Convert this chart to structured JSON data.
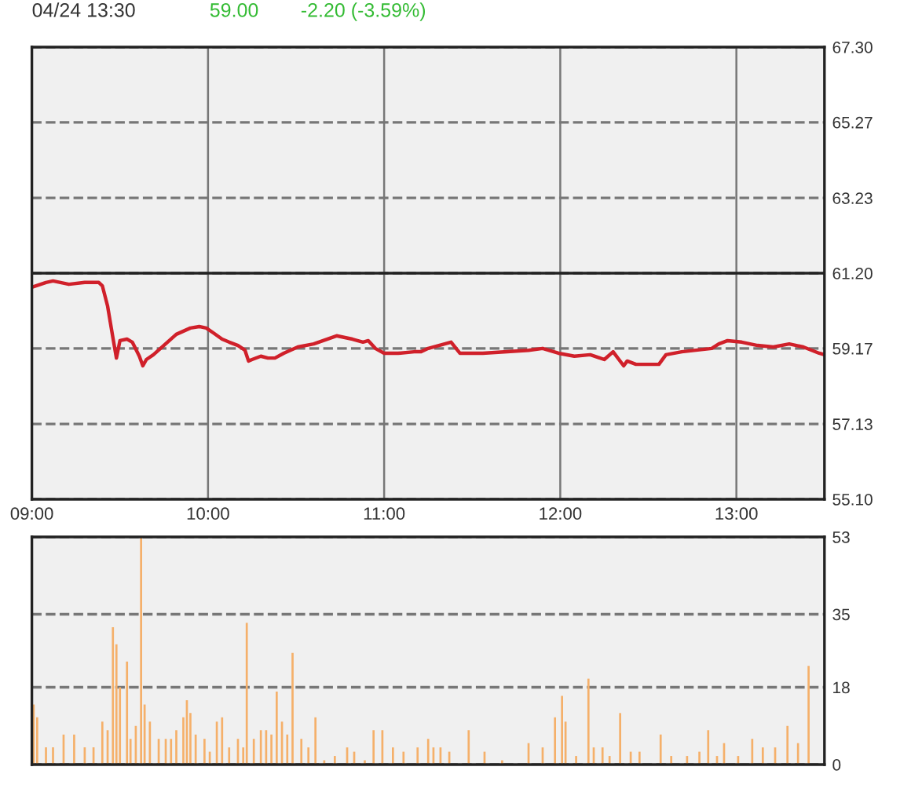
{
  "chart_data": [
    {
      "type": "line",
      "title": "04/24 13:30",
      "annotations": [
        "59.00",
        "-2.20 (-3.59%)"
      ],
      "xlim": [
        9.0,
        13.5
      ],
      "xticks": [
        {
          "value": 9,
          "label": "09:00"
        },
        {
          "value": 10,
          "label": "10:00"
        },
        {
          "value": 11,
          "label": "11:00"
        },
        {
          "value": 12,
          "label": "12:00"
        },
        {
          "value": 13,
          "label": "13:00"
        }
      ],
      "ylim": [
        55.1,
        67.3
      ],
      "yticks": [
        {
          "value": 55.1,
          "label": "55.10"
        },
        57.13,
        59.17,
        {
          "value": 61.2,
          "label": "61.20"
        },
        63.23,
        65.27,
        {
          "value": 67.3,
          "label": "67.30"
        }
      ],
      "grid": true,
      "marker": "none",
      "line_style": "solid",
      "ref_lines": [
        {
          "axis": "y",
          "value": 61.2,
          "label": null,
          "color": "#222222",
          "line_style": "solid"
        }
      ],
      "series": [
        {
          "color": "#d0202a",
          "x": [
            9.0,
            9.08,
            9.12,
            9.21,
            9.3,
            9.38,
            9.4,
            9.43,
            9.46,
            9.48,
            9.5,
            9.54,
            9.57,
            9.61,
            9.63,
            9.65,
            9.69,
            9.77,
            9.82,
            9.9,
            9.95,
            9.99,
            10.03,
            10.08,
            10.12,
            10.17,
            10.21,
            10.23,
            10.25,
            10.3,
            10.34,
            10.38,
            10.43,
            10.51,
            10.6,
            10.73,
            10.82,
            10.88,
            10.91,
            10.95,
            11.0,
            11.08,
            11.17,
            11.21,
            11.25,
            11.38,
            11.43,
            11.56,
            11.82,
            11.9,
            11.99,
            12.08,
            12.17,
            12.25,
            12.3,
            12.36,
            12.38,
            12.43,
            12.56,
            12.6,
            12.69,
            12.86,
            12.9,
            12.95,
            13.03,
            13.12,
            13.21,
            13.3,
            13.38,
            13.47,
            13.5
          ],
          "values": [
            60.82,
            60.95,
            60.99,
            60.9,
            60.95,
            60.95,
            60.86,
            60.31,
            59.46,
            58.91,
            59.38,
            59.42,
            59.34,
            58.96,
            58.7,
            58.87,
            59.0,
            59.34,
            59.55,
            59.72,
            59.76,
            59.72,
            59.59,
            59.42,
            59.34,
            59.25,
            59.12,
            58.83,
            58.87,
            58.96,
            58.91,
            58.91,
            59.04,
            59.21,
            59.29,
            59.51,
            59.42,
            59.34,
            59.38,
            59.17,
            59.04,
            59.04,
            59.08,
            59.08,
            59.17,
            59.34,
            59.04,
            59.04,
            59.12,
            59.17,
            59.04,
            58.96,
            59.0,
            58.87,
            59.08,
            58.7,
            58.83,
            58.74,
            58.74,
            59.0,
            59.08,
            59.17,
            59.29,
            59.38,
            59.34,
            59.25,
            59.21,
            59.29,
            59.21,
            59.04,
            59.0
          ]
        }
      ]
    },
    {
      "type": "bar",
      "xlim": [
        9.0,
        13.5
      ],
      "tick_labels": "y",
      "ylim": [
        0,
        53
      ],
      "yticks": [
        0,
        18,
        35,
        53
      ],
      "grid": "y",
      "series": [
        {
          "color": "#f5b06a",
          "x": [
            9.01,
            9.03,
            9.08,
            9.12,
            9.18,
            9.24,
            9.3,
            9.35,
            9.4,
            9.43,
            9.46,
            9.48,
            9.5,
            9.54,
            9.56,
            9.59,
            9.62,
            9.64,
            9.67,
            9.72,
            9.76,
            9.79,
            9.82,
            9.86,
            9.88,
            9.9,
            9.93,
            9.98,
            10.01,
            10.05,
            10.08,
            10.12,
            10.17,
            10.2,
            10.22,
            10.26,
            10.3,
            10.33,
            10.36,
            10.39,
            10.42,
            10.45,
            10.48,
            10.53,
            10.57,
            10.61,
            10.66,
            10.72,
            10.79,
            10.83,
            10.89,
            10.94,
            10.99,
            11.05,
            11.11,
            11.19,
            11.25,
            11.28,
            11.32,
            11.37,
            11.48,
            11.57,
            11.67,
            11.82,
            11.9,
            11.97,
            12.01,
            12.03,
            12.09,
            12.16,
            12.19,
            12.24,
            12.28,
            12.34,
            12.4,
            12.45,
            12.57,
            12.63,
            12.72,
            12.79,
            12.84,
            12.89,
            12.93,
            13.01,
            13.09,
            13.15,
            13.22,
            13.29,
            13.35,
            13.41
          ],
          "values": [
            14,
            11,
            4,
            4,
            7,
            7,
            4,
            4,
            10,
            8,
            32,
            28,
            18,
            24,
            6,
            9,
            53,
            14,
            10,
            6,
            6,
            6,
            8,
            11,
            15,
            12,
            7,
            6,
            3,
            10,
            11,
            4,
            6,
            4,
            33,
            6,
            8,
            8,
            7,
            17,
            10,
            7,
            26,
            6,
            4,
            11,
            1,
            2,
            4,
            3,
            1,
            8,
            8,
            4,
            3,
            4,
            6,
            4,
            4,
            3,
            8,
            3,
            1,
            5,
            4,
            11,
            16,
            10,
            2,
            20,
            4,
            4,
            2,
            12,
            3,
            3,
            7,
            2,
            2,
            3,
            8,
            2,
            5,
            2,
            6,
            4,
            4,
            9,
            5,
            23
          ]
        }
      ]
    }
  ]
}
